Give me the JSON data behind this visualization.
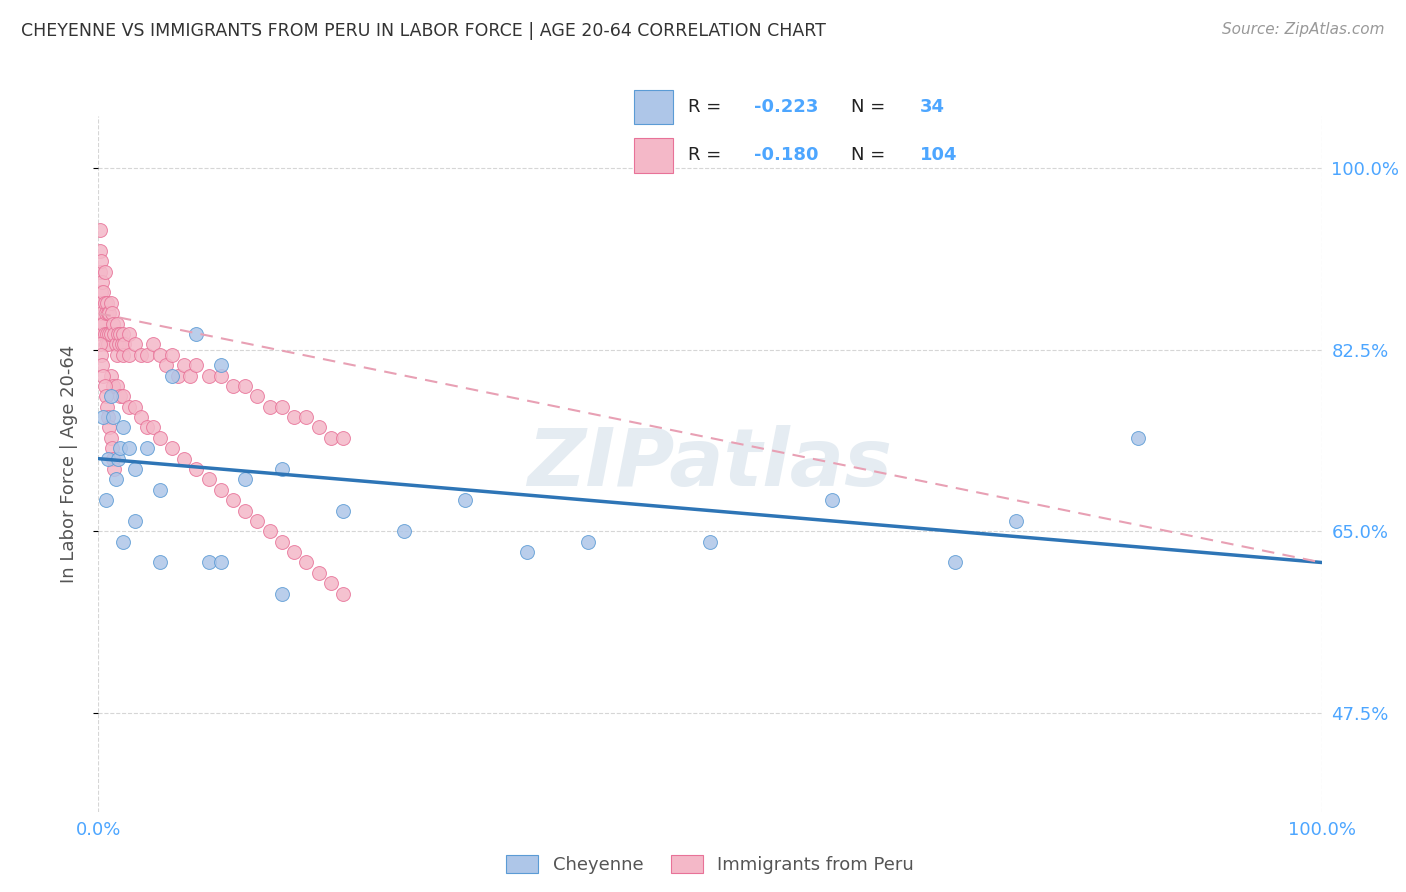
{
  "title": "CHEYENNE VS IMMIGRANTS FROM PERU IN LABOR FORCE | AGE 20-64 CORRELATION CHART",
  "source": "Source: ZipAtlas.com",
  "ylabel": "In Labor Force | Age 20-64",
  "watermark": "ZIPatlas",
  "cheyenne_R": "-0.223",
  "cheyenne_N": "34",
  "peru_R": "-0.180",
  "peru_N": "104",
  "xlim": [
    0.0,
    1.0
  ],
  "ylim": [
    0.38,
    1.05
  ],
  "yticks": [
    0.475,
    0.65,
    0.825,
    1.0
  ],
  "ytick_labels": [
    "47.5%",
    "65.0%",
    "82.5%",
    "100.0%"
  ],
  "xtick_labels": [
    "0.0%",
    "100.0%"
  ],
  "xticks": [
    0.0,
    1.0
  ],
  "cheyenne_color": "#aec6e8",
  "cheyenne_edge_color": "#5b9bd5",
  "cheyenne_line_color": "#2e75b6",
  "peru_color": "#f4b8c8",
  "peru_edge_color": "#e87298",
  "peru_line_color": "#e87298",
  "peru_dash_color": "#e8a0b4",
  "background_color": "#ffffff",
  "grid_color": "#cccccc",
  "tick_color": "#4da6ff",
  "title_color": "#333333",
  "axis_label_color": "#555555",
  "cheyenne_x": [
    0.004,
    0.006,
    0.008,
    0.01,
    0.012,
    0.014,
    0.016,
    0.018,
    0.02,
    0.025,
    0.03,
    0.04,
    0.05,
    0.06,
    0.08,
    0.1,
    0.12,
    0.15,
    0.2,
    0.25,
    0.3,
    0.35,
    0.4,
    0.5,
    0.6,
    0.7,
    0.75,
    0.85,
    0.02,
    0.03,
    0.05,
    0.09,
    0.1,
    0.15
  ],
  "cheyenne_y": [
    0.76,
    0.68,
    0.72,
    0.78,
    0.76,
    0.7,
    0.72,
    0.73,
    0.75,
    0.73,
    0.71,
    0.73,
    0.69,
    0.8,
    0.84,
    0.81,
    0.7,
    0.71,
    0.67,
    0.65,
    0.68,
    0.63,
    0.64,
    0.64,
    0.68,
    0.62,
    0.66,
    0.74,
    0.64,
    0.66,
    0.62,
    0.62,
    0.62,
    0.59
  ],
  "peru_x": [
    0.001,
    0.001,
    0.001,
    0.001,
    0.001,
    0.002,
    0.002,
    0.002,
    0.002,
    0.003,
    0.003,
    0.003,
    0.004,
    0.004,
    0.005,
    0.005,
    0.005,
    0.006,
    0.006,
    0.007,
    0.007,
    0.008,
    0.008,
    0.009,
    0.009,
    0.01,
    0.01,
    0.011,
    0.012,
    0.013,
    0.014,
    0.015,
    0.015,
    0.016,
    0.017,
    0.018,
    0.019,
    0.02,
    0.02,
    0.021,
    0.025,
    0.025,
    0.03,
    0.035,
    0.04,
    0.045,
    0.05,
    0.055,
    0.06,
    0.065,
    0.07,
    0.075,
    0.08,
    0.09,
    0.1,
    0.11,
    0.12,
    0.13,
    0.14,
    0.15,
    0.16,
    0.17,
    0.18,
    0.19,
    0.2,
    0.01,
    0.012,
    0.015,
    0.018,
    0.02,
    0.025,
    0.03,
    0.035,
    0.04,
    0.045,
    0.05,
    0.06,
    0.07,
    0.08,
    0.09,
    0.1,
    0.11,
    0.12,
    0.13,
    0.14,
    0.15,
    0.16,
    0.17,
    0.18,
    0.19,
    0.2,
    0.001,
    0.002,
    0.003,
    0.004,
    0.005,
    0.006,
    0.007,
    0.008,
    0.009,
    0.01,
    0.011,
    0.012,
    0.013
  ],
  "peru_y": [
    0.87,
    0.9,
    0.92,
    0.94,
    0.85,
    0.88,
    0.91,
    0.87,
    0.85,
    0.89,
    0.86,
    0.84,
    0.88,
    0.85,
    0.9,
    0.87,
    0.84,
    0.86,
    0.83,
    0.87,
    0.84,
    0.86,
    0.83,
    0.86,
    0.84,
    0.87,
    0.84,
    0.86,
    0.85,
    0.84,
    0.83,
    0.85,
    0.82,
    0.84,
    0.83,
    0.84,
    0.83,
    0.84,
    0.82,
    0.83,
    0.84,
    0.82,
    0.83,
    0.82,
    0.82,
    0.83,
    0.82,
    0.81,
    0.82,
    0.8,
    0.81,
    0.8,
    0.81,
    0.8,
    0.8,
    0.79,
    0.79,
    0.78,
    0.77,
    0.77,
    0.76,
    0.76,
    0.75,
    0.74,
    0.74,
    0.8,
    0.79,
    0.79,
    0.78,
    0.78,
    0.77,
    0.77,
    0.76,
    0.75,
    0.75,
    0.74,
    0.73,
    0.72,
    0.71,
    0.7,
    0.69,
    0.68,
    0.67,
    0.66,
    0.65,
    0.64,
    0.63,
    0.62,
    0.61,
    0.6,
    0.59,
    0.83,
    0.82,
    0.81,
    0.8,
    0.79,
    0.78,
    0.77,
    0.76,
    0.75,
    0.74,
    0.73,
    0.72,
    0.71
  ],
  "cheyenne_trend_x": [
    0.0,
    1.0
  ],
  "cheyenne_trend_y": [
    0.72,
    0.62
  ],
  "peru_trend_x": [
    0.0,
    1.0
  ],
  "peru_trend_y": [
    0.86,
    0.62
  ]
}
